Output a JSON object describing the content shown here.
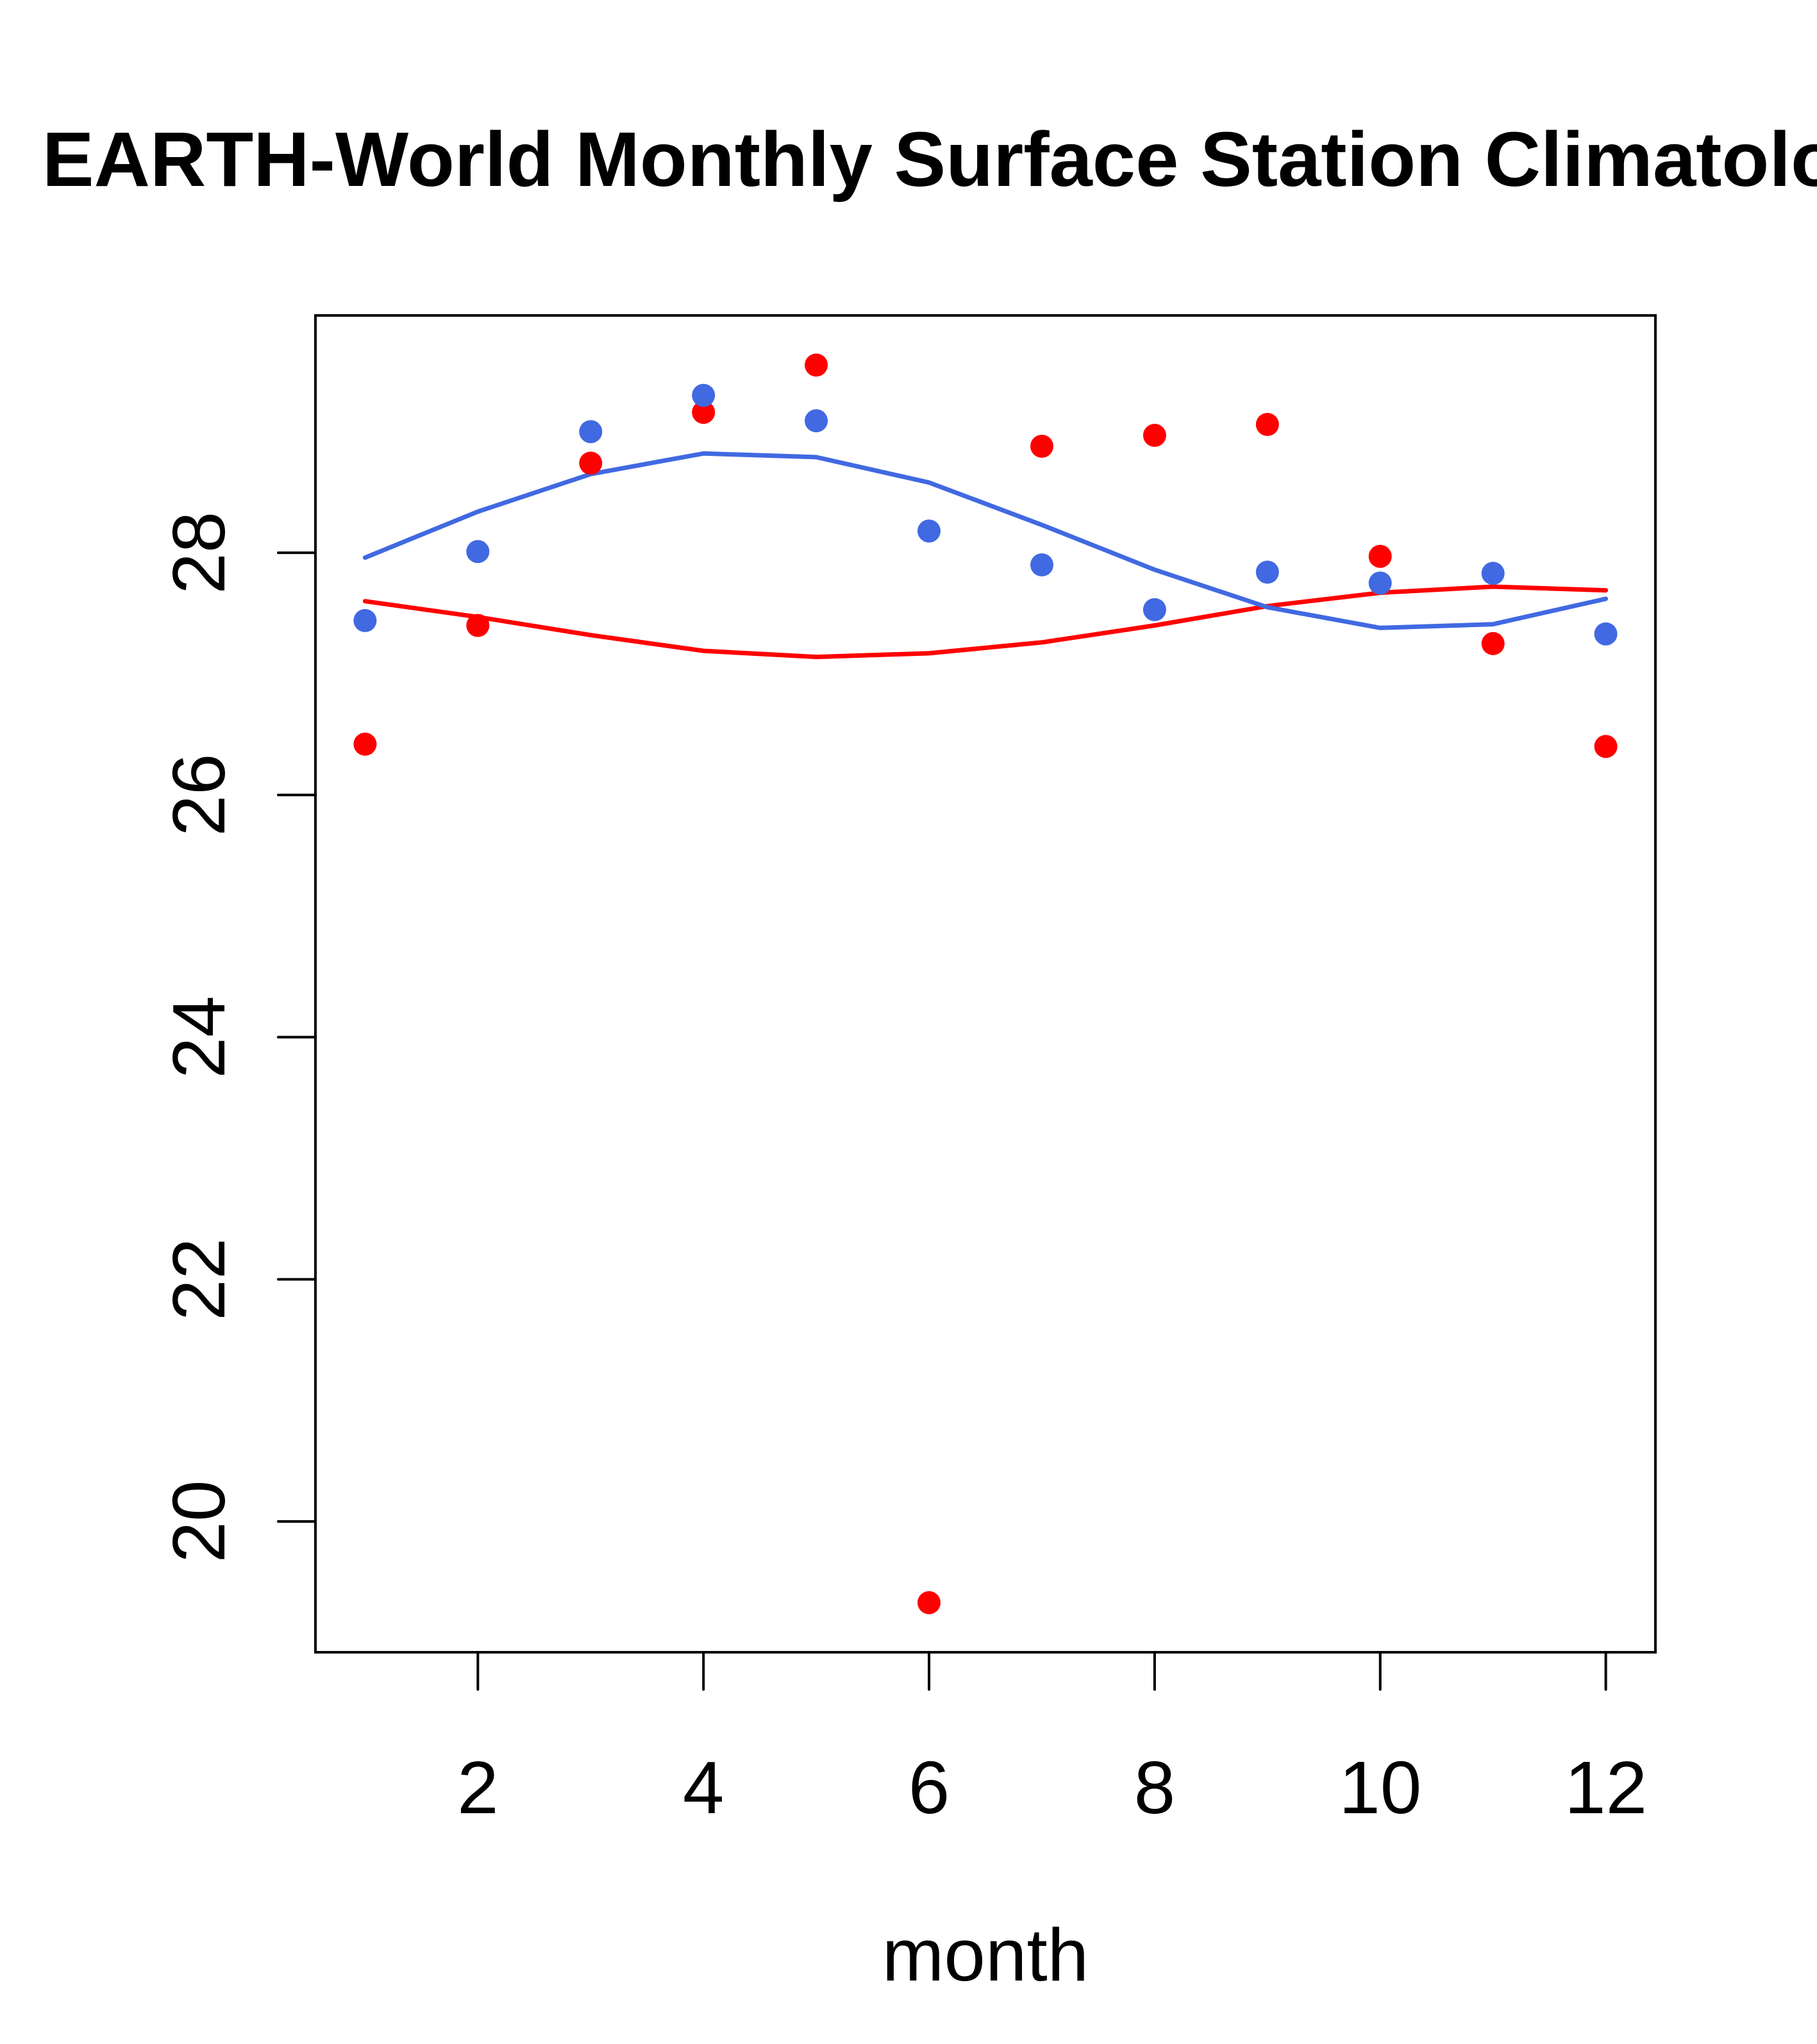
{
  "chart_data": {
    "type": "scatter",
    "title": "EARTH-World Monthly Surface Station Climatology",
    "xlabel": "month",
    "ylabel": "",
    "xlim": [
      0.56,
      12.44
    ],
    "ylim": [
      18.92,
      29.96
    ],
    "grid": false,
    "legend": "none",
    "x": [
      1,
      2,
      3,
      4,
      5,
      6,
      7,
      8,
      9,
      10,
      11,
      12
    ],
    "x_ticks": [
      2,
      4,
      6,
      8,
      10,
      12
    ],
    "x_tick_labels": [
      "2",
      "4",
      "6",
      "8",
      "10",
      "12"
    ],
    "y_ticks": [
      20,
      22,
      24,
      26,
      28
    ],
    "y_tick_labels": [
      "20",
      "22",
      "24",
      "26",
      "28"
    ],
    "series": [
      {
        "name": "red-points",
        "kind": "points",
        "color": "#ff0000",
        "values": [
          26.42,
          27.4,
          28.74,
          29.16,
          29.55,
          19.33,
          28.88,
          28.97,
          29.06,
          27.97,
          27.25,
          26.4
        ]
      },
      {
        "name": "blue-points",
        "kind": "points",
        "color": "#4169e1",
        "values": [
          27.44,
          28.01,
          29.0,
          29.3,
          29.09,
          28.18,
          27.9,
          27.53,
          27.84,
          27.75,
          27.83,
          27.33
        ]
      },
      {
        "name": "red-line",
        "kind": "line",
        "color": "#ff0000",
        "values": [
          27.6,
          27.47,
          27.32,
          27.19,
          27.14,
          27.17,
          27.26,
          27.4,
          27.56,
          27.67,
          27.72,
          27.69
        ]
      },
      {
        "name": "blue-line",
        "kind": "line",
        "color": "#4169e1",
        "values": [
          27.96,
          28.34,
          28.65,
          28.82,
          28.79,
          28.58,
          28.23,
          27.86,
          27.55,
          27.38,
          27.41,
          27.62
        ]
      }
    ]
  }
}
